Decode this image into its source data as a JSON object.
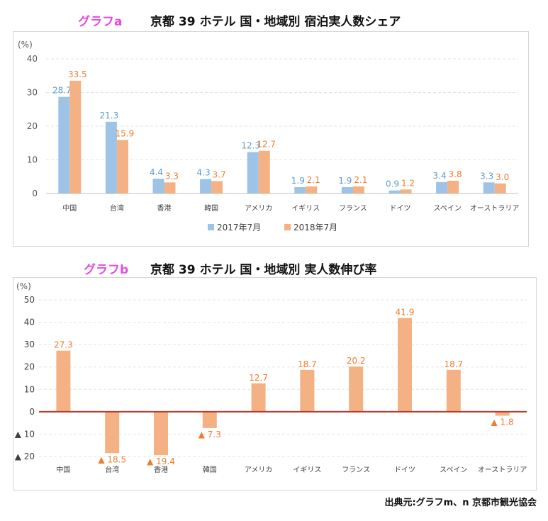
{
  "charts": {
    "a": {
      "tag": "グラフa",
      "title": "京都 39 ホテル  国・地域別  宿泊実人数シェア"
    },
    "b": {
      "tag": "グラフb",
      "title": "京都 39 ホテル  国・地域別  実人数伸び率"
    }
  },
  "source": "出典元:グラフm、n  京都市観光協会",
  "colors": {
    "series_2017": "#9dc3e6",
    "series_2018": "#f4b183",
    "label_2017": "#5b9bd5",
    "label_2018": "#ed7d31",
    "zero_line": "#c0392b",
    "marker": "#ed7d31"
  },
  "chart_data": [
    {
      "type": "bar",
      "title": "京都 39 ホテル  国・地域別  宿泊実人数シェア",
      "ylabel": "(%)",
      "ylim": [
        0,
        40
      ],
      "yticks": [
        0,
        10,
        20,
        30,
        40
      ],
      "categories": [
        "中国",
        "台湾",
        "香港",
        "韓国",
        "アメリカ",
        "イギリス",
        "フランス",
        "ドイツ",
        "スペイン",
        "オーストラリア"
      ],
      "series": [
        {
          "name": "2017年7月",
          "values": [
            28.7,
            21.3,
            4.4,
            4.3,
            12.3,
            1.9,
            1.9,
            0.9,
            3.4,
            3.3
          ],
          "labels": [
            "28.7",
            "21.3",
            "4.4",
            "4.3",
            "12.3",
            "1.9",
            "1.9",
            "0.9",
            "3.4",
            "3.3"
          ]
        },
        {
          "name": "2018年7月",
          "values": [
            33.5,
            15.9,
            3.3,
            3.7,
            12.7,
            2.1,
            2.1,
            1.2,
            3.8,
            3.0
          ],
          "labels": [
            "33.5",
            "15.9",
            "3.3",
            "3.7",
            "12.7",
            "2.1",
            "2.1",
            "1.2",
            "3.8",
            "3.0"
          ]
        }
      ],
      "legend": "bottom",
      "grid": true
    },
    {
      "type": "bar",
      "title": "京都 39 ホテル  国・地域別  実人数伸び率",
      "ylabel": "(%)",
      "ylim": [
        -20,
        50
      ],
      "yticks": [
        50,
        40,
        30,
        20,
        10,
        0,
        -10,
        -20
      ],
      "ytick_labels": [
        "50",
        "40",
        "30",
        "20",
        "10",
        "0",
        "▲ 10",
        "▲ 20"
      ],
      "categories": [
        "中国",
        "台湾",
        "香港",
        "韓国",
        "アメリカ",
        "イギリス",
        "フランス",
        "ドイツ",
        "スペイン",
        "オーストラリア"
      ],
      "values": [
        27.3,
        -18.5,
        -19.4,
        -7.3,
        12.7,
        18.7,
        20.2,
        41.9,
        18.7,
        -1.8
      ],
      "labels": [
        "27.3",
        "▲ 18.5",
        "▲ 19.4",
        "▲ 7.3",
        "12.7",
        "18.7",
        "20.2",
        "41.9",
        "18.7",
        "▲ 1.8"
      ],
      "grid": true
    }
  ]
}
